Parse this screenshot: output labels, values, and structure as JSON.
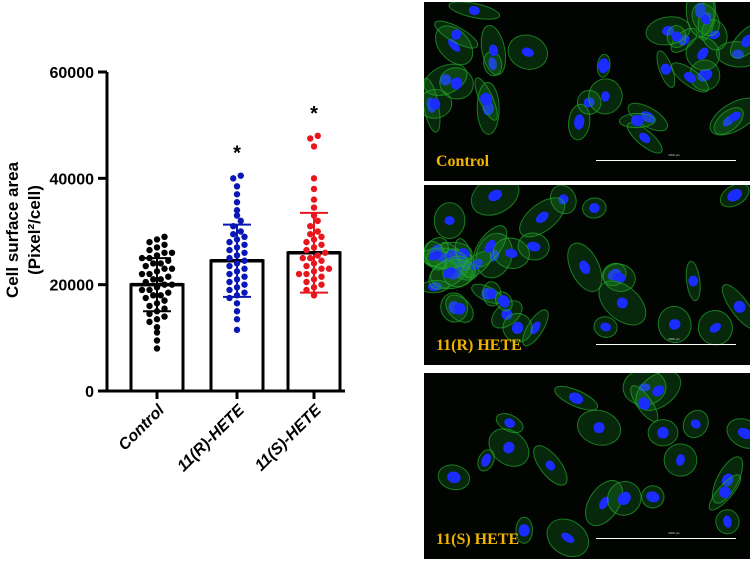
{
  "chart_data": {
    "type": "bar",
    "ylabel_line1": "Cell surface area",
    "ylabel_line2": "(Pixel²/cell)",
    "ylim": [
      0,
      60000
    ],
    "yticks": [
      0,
      20000,
      40000,
      60000
    ],
    "ytick_labels": [
      "0",
      "20000",
      "40000",
      "60000"
    ],
    "categories": [
      "Control",
      "11(R)-HETE",
      "11(S)-HETE"
    ],
    "values": [
      20000,
      24500,
      26000
    ],
    "sd": [
      5000,
      6800,
      7500
    ],
    "significance": [
      "",
      "*",
      "*"
    ],
    "series": [
      {
        "name": "Control",
        "color": "#000000",
        "points": [
          8000,
          9500,
          11000,
          12000,
          13000,
          13500,
          14000,
          14500,
          15000,
          15500,
          16000,
          16500,
          17000,
          17500,
          18000,
          18000,
          18500,
          19000,
          19000,
          19500,
          20000,
          20000,
          20500,
          21000,
          21000,
          21500,
          22000,
          22000,
          22500,
          23000,
          23000,
          23500,
          24000,
          24000,
          24500,
          25000,
          25000,
          25500,
          26000,
          26000,
          26500,
          27000,
          27500,
          28000,
          28500,
          29000
        ]
      },
      {
        "name": "11(R)-HETE",
        "color": "#0a17b4",
        "points": [
          11500,
          13500,
          15000,
          16500,
          17500,
          18000,
          18500,
          19000,
          19500,
          20000,
          20500,
          21000,
          21500,
          22000,
          22500,
          23000,
          23500,
          24000,
          24500,
          25000,
          25500,
          26000,
          26500,
          27000,
          27500,
          28000,
          28500,
          29000,
          29500,
          30000,
          31000,
          32000,
          33000,
          34000,
          35500,
          37000,
          38500,
          40000,
          40500
        ]
      },
      {
        "name": "11(S)-HETE",
        "color": "#e8171d",
        "points": [
          18000,
          19000,
          19500,
          20000,
          20500,
          21000,
          21500,
          22000,
          22000,
          22500,
          23000,
          23000,
          23500,
          24000,
          24500,
          25000,
          25000,
          25500,
          26000,
          26500,
          27000,
          27500,
          28000,
          28500,
          29000,
          29500,
          30000,
          31000,
          32000,
          33000,
          34500,
          36000,
          38000,
          40000,
          46000,
          47500,
          48000
        ]
      }
    ]
  },
  "panels": [
    {
      "label": "Control",
      "scale_text": "2000 µm"
    },
    {
      "label": "11(R) HETE",
      "scale_text": "2000 µm"
    },
    {
      "label": "11(S) HETE",
      "scale_text": "2000 µm"
    }
  ],
  "colors": {
    "label_gold": "#f2b400",
    "nucleus_blue": "#1a2cff",
    "cytoplasm_green": "#22a82c"
  }
}
